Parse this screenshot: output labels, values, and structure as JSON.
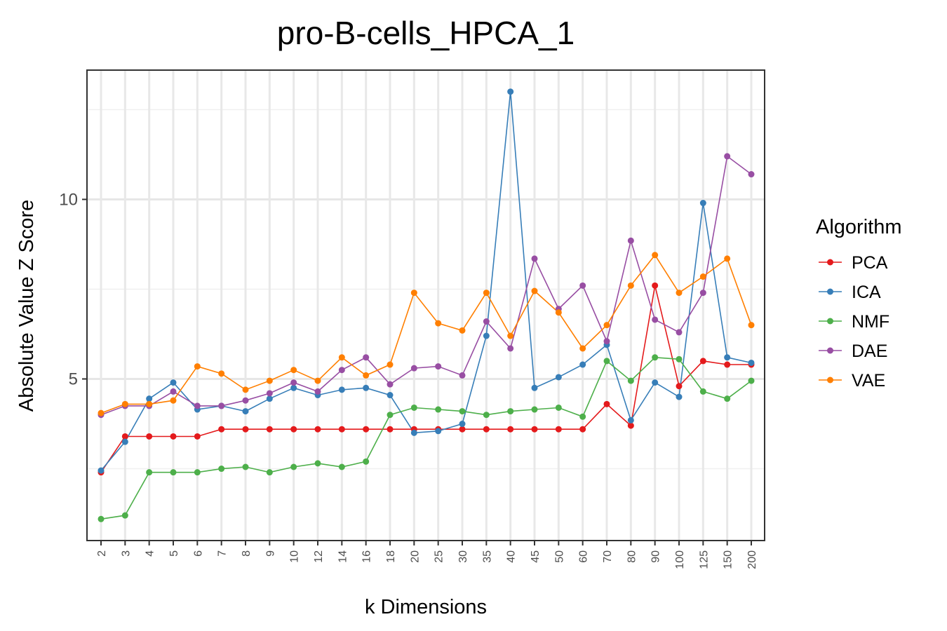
{
  "chart_data": {
    "type": "line",
    "title": "pro-B-cells_HPCA_1",
    "xlabel": "k Dimensions",
    "ylabel": "Absolute Value Z Score",
    "categories": [
      "2",
      "3",
      "4",
      "5",
      "6",
      "7",
      "8",
      "9",
      "10",
      "12",
      "14",
      "16",
      "18",
      "20",
      "25",
      "30",
      "35",
      "40",
      "45",
      "50",
      "60",
      "70",
      "80",
      "90",
      "100",
      "125",
      "150",
      "200"
    ],
    "y_ticks": [
      "5",
      "10"
    ],
    "ylim": [
      0.5,
      13.6
    ],
    "grid": true,
    "legend": {
      "title": "Algorithm",
      "position": "right"
    },
    "series": [
      {
        "name": "PCA",
        "color": "#E41A1C",
        "values": [
          2.4,
          3.4,
          3.4,
          3.4,
          3.4,
          3.6,
          3.6,
          3.6,
          3.6,
          3.6,
          3.6,
          3.6,
          3.6,
          3.6,
          3.6,
          3.6,
          3.6,
          3.6,
          3.6,
          3.6,
          3.6,
          4.3,
          3.7,
          7.6,
          4.8,
          5.5,
          5.4,
          5.4
        ]
      },
      {
        "name": "ICA",
        "color": "#377EB8",
        "values": [
          2.45,
          3.25,
          4.45,
          4.9,
          4.15,
          4.25,
          4.1,
          4.45,
          4.75,
          4.55,
          4.7,
          4.75,
          4.55,
          3.5,
          3.55,
          3.75,
          6.2,
          13.0,
          4.75,
          5.05,
          5.4,
          5.95,
          3.85,
          4.9,
          4.5,
          9.9,
          5.6,
          5.45
        ]
      },
      {
        "name": "NMF",
        "color": "#4DAF4A",
        "values": [
          1.1,
          1.2,
          2.4,
          2.4,
          2.4,
          2.5,
          2.55,
          2.4,
          2.55,
          2.65,
          2.55,
          2.7,
          4.0,
          4.2,
          4.15,
          4.1,
          4.0,
          4.1,
          4.15,
          4.2,
          3.95,
          5.5,
          4.95,
          5.6,
          5.55,
          4.65,
          4.45,
          4.95
        ]
      },
      {
        "name": "DAE",
        "color": "#984EA3",
        "values": [
          4.0,
          4.25,
          4.25,
          4.65,
          4.25,
          4.25,
          4.4,
          4.6,
          4.9,
          4.65,
          5.25,
          5.6,
          4.85,
          5.3,
          5.35,
          5.1,
          6.6,
          5.85,
          8.35,
          6.95,
          7.6,
          6.05,
          8.85,
          6.65,
          6.3,
          7.4,
          11.2,
          10.7
        ]
      },
      {
        "name": "VAE",
        "color": "#FF7F00",
        "values": [
          4.05,
          4.3,
          4.3,
          4.4,
          5.35,
          5.15,
          4.7,
          4.95,
          5.25,
          4.95,
          5.6,
          5.1,
          5.4,
          7.4,
          6.55,
          6.35,
          7.4,
          6.2,
          7.45,
          6.85,
          5.85,
          6.5,
          7.6,
          8.45,
          7.4,
          7.85,
          8.35,
          6.5
        ]
      }
    ]
  }
}
